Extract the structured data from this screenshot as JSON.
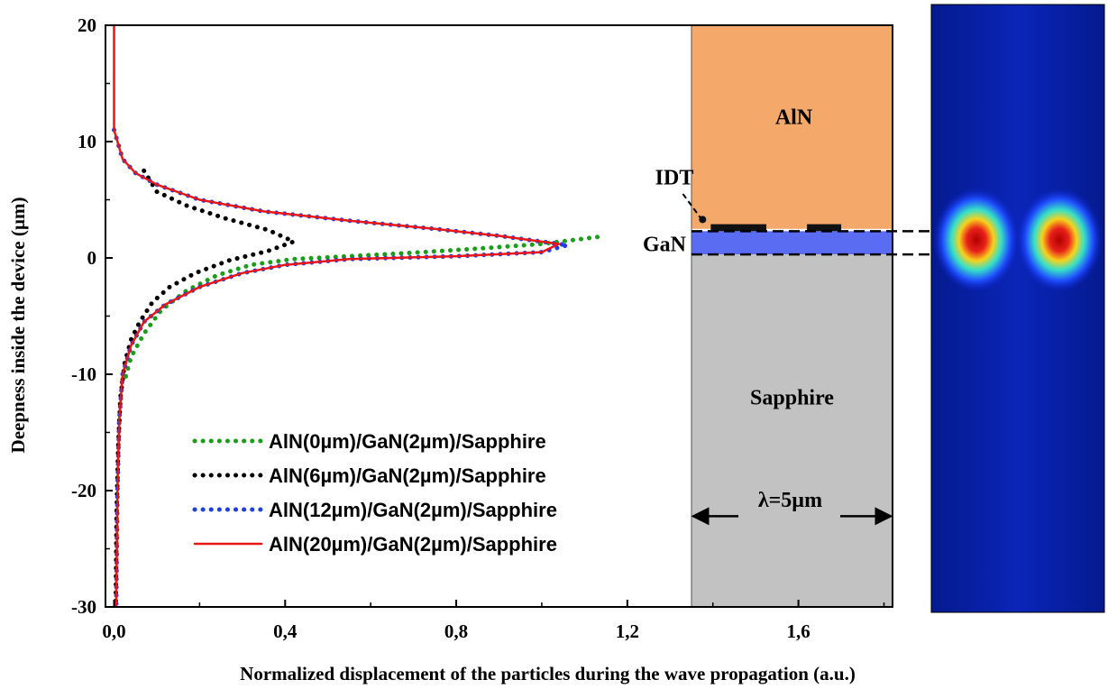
{
  "chart_data": {
    "type": "line",
    "xlabel": "Normalized displacement of the particles during the wave propagation (a.u.)",
    "ylabel": "Deepness inside the device (µm)",
    "xlim": [
      -0.02,
      1.82
    ],
    "ylim": [
      -30,
      20
    ],
    "x_ticks": [
      0.0,
      0.4,
      0.8,
      1.2,
      1.6
    ],
    "x_tick_labels": [
      "0,0",
      "0,4",
      "0,8",
      "1,2",
      "1,6"
    ],
    "y_ticks": [
      -30,
      -20,
      -10,
      0,
      10,
      20
    ],
    "y_tick_labels": [
      "-30",
      "-20",
      "-10",
      "0",
      "10",
      "20"
    ],
    "legend_position": "bottom-left",
    "series": [
      {
        "name": "AlN(0µm)/GaN(2µm)/Sapphire",
        "color": "#1a9e1a",
        "style": "dotted",
        "points": [
          [
            1.13,
            1.8
          ],
          [
            1.0,
            1.2
          ],
          [
            0.85,
            0.8
          ],
          [
            0.7,
            0.45
          ],
          [
            0.55,
            0.15
          ],
          [
            0.42,
            -0.1
          ],
          [
            0.32,
            -0.6
          ],
          [
            0.24,
            -1.5
          ],
          [
            0.17,
            -2.8
          ],
          [
            0.11,
            -4.5
          ],
          [
            0.07,
            -6.5
          ],
          [
            0.04,
            -8.5
          ],
          [
            0.025,
            -10.5
          ]
        ]
      },
      {
        "name": "AlN(6µm)/GaN(2µm)/Sapphire",
        "color": "#000000",
        "style": "dotted",
        "points": [
          [
            0.07,
            7.5
          ],
          [
            0.1,
            5.7
          ],
          [
            0.17,
            4.5
          ],
          [
            0.26,
            3.4
          ],
          [
            0.36,
            2.4
          ],
          [
            0.42,
            1.4
          ],
          [
            0.36,
            0.6
          ],
          [
            0.27,
            -0.2
          ],
          [
            0.19,
            -1.3
          ],
          [
            0.13,
            -2.5
          ],
          [
            0.09,
            -3.8
          ],
          [
            0.06,
            -5.5
          ],
          [
            0.04,
            -7.0
          ],
          [
            0.025,
            -9.0
          ],
          [
            0.015,
            -12.0
          ],
          [
            0.01,
            -16.0
          ],
          [
            0.006,
            -22.0
          ],
          [
            0.004,
            -30.0
          ]
        ]
      },
      {
        "name": "AlN(12µm)/GaN(2µm)/Sapphire",
        "color": "#1f3fe0",
        "style": "dotted",
        "points": [
          [
            0.0,
            11.0
          ],
          [
            0.02,
            8.5
          ],
          [
            0.05,
            7.3
          ],
          [
            0.1,
            6.3
          ],
          [
            0.2,
            5.0
          ],
          [
            0.35,
            4.0
          ],
          [
            0.55,
            3.2
          ],
          [
            0.75,
            2.5
          ],
          [
            0.9,
            1.9
          ],
          [
            1.06,
            1.1
          ],
          [
            1.0,
            0.5
          ],
          [
            0.8,
            0.15
          ],
          [
            0.55,
            -0.1
          ],
          [
            0.4,
            -0.6
          ],
          [
            0.3,
            -1.3
          ],
          [
            0.2,
            -2.5
          ],
          [
            0.12,
            -4.0
          ],
          [
            0.07,
            -5.5
          ],
          [
            0.04,
            -7.5
          ],
          [
            0.02,
            -10.0
          ],
          [
            0.012,
            -14.0
          ],
          [
            0.008,
            -20.0
          ],
          [
            0.005,
            -30.0
          ]
        ]
      },
      {
        "name": "AlN(20µm)/GaN(2µm)/Sapphire",
        "color": "#e81616",
        "style": "solid",
        "points": [
          [
            0.0,
            20.0
          ],
          [
            0.0,
            15.0
          ],
          [
            0.0,
            11.0
          ],
          [
            0.02,
            8.5
          ],
          [
            0.05,
            7.3
          ],
          [
            0.1,
            6.3
          ],
          [
            0.2,
            5.0
          ],
          [
            0.35,
            4.0
          ],
          [
            0.55,
            3.2
          ],
          [
            0.75,
            2.5
          ],
          [
            0.9,
            1.9
          ],
          [
            1.04,
            1.2
          ],
          [
            1.0,
            0.5
          ],
          [
            0.8,
            0.15
          ],
          [
            0.55,
            -0.1
          ],
          [
            0.4,
            -0.6
          ],
          [
            0.3,
            -1.3
          ],
          [
            0.2,
            -2.5
          ],
          [
            0.12,
            -4.0
          ],
          [
            0.07,
            -5.5
          ],
          [
            0.04,
            -7.5
          ],
          [
            0.02,
            -10.0
          ],
          [
            0.012,
            -14.0
          ],
          [
            0.008,
            -20.0
          ],
          [
            0.005,
            -30.0
          ]
        ]
      }
    ],
    "device": {
      "x_range": [
        1.35,
        1.82
      ],
      "layers": [
        {
          "label": "AlN",
          "color": "#f4a86a",
          "y_range": [
            2.5,
            20
          ]
        },
        {
          "label": "GaN",
          "color": "#5a6cf2",
          "y_range": [
            0.3,
            2.3
          ]
        },
        {
          "label": "Sapphire",
          "color": "#c2c2c2",
          "y_range": [
            -30,
            0.3
          ]
        }
      ],
      "idt_label": "IDT",
      "wavelength_label": "λ=5µm"
    }
  }
}
